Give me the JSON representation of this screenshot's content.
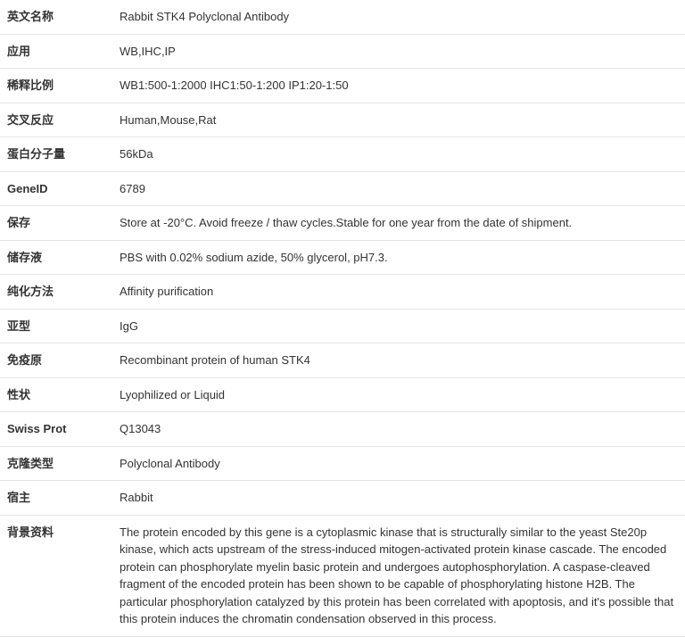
{
  "rows": [
    {
      "label": "英文名称",
      "value": "Rabbit STK4 Polyclonal Antibody"
    },
    {
      "label": "应用",
      "value": "WB,IHC,IP"
    },
    {
      "label": "稀释比例",
      "value": "WB1:500-1:2000 IHC1:50-1:200 IP1:20-1:50"
    },
    {
      "label": "交叉反应",
      "value": "Human,Mouse,Rat"
    },
    {
      "label": "蛋白分子量",
      "value": "56kDa"
    },
    {
      "label": "GeneID",
      "value": "6789"
    },
    {
      "label": "保存",
      "value": "Store at -20°C. Avoid freeze / thaw cycles.Stable for one year from the date of shipment."
    },
    {
      "label": "储存液",
      "value": "PBS with 0.02% sodium azide, 50% glycerol, pH7.3."
    },
    {
      "label": "纯化方法",
      "value": "Affinity purification"
    },
    {
      "label": "亚型",
      "value": "IgG"
    },
    {
      "label": "免疫原",
      "value": "Recombinant protein of human STK4"
    },
    {
      "label": "性状",
      "value": "Lyophilized or Liquid"
    },
    {
      "label": "Swiss Prot",
      "value": "Q13043"
    },
    {
      "label": "克隆类型",
      "value": "Polyclonal Antibody"
    },
    {
      "label": "宿主",
      "value": "Rabbit"
    },
    {
      "label": "背景资料",
      "value": "The protein encoded by this gene is a cytoplasmic kinase that is structurally similar to the yeast Ste20p kinase, which acts upstream of the stress-induced mitogen-activated protein kinase cascade. The encoded protein can phosphorylate myelin basic protein and undergoes autophosphorylation. A caspase-cleaved fragment of the encoded protein has been shown to be capable of phosphorylating histone H2B. The particular phosphorylation catalyzed by this protein has been correlated with apoptosis, and it's possible that this protein induces the chromatin condensation observed in this process."
    }
  ]
}
